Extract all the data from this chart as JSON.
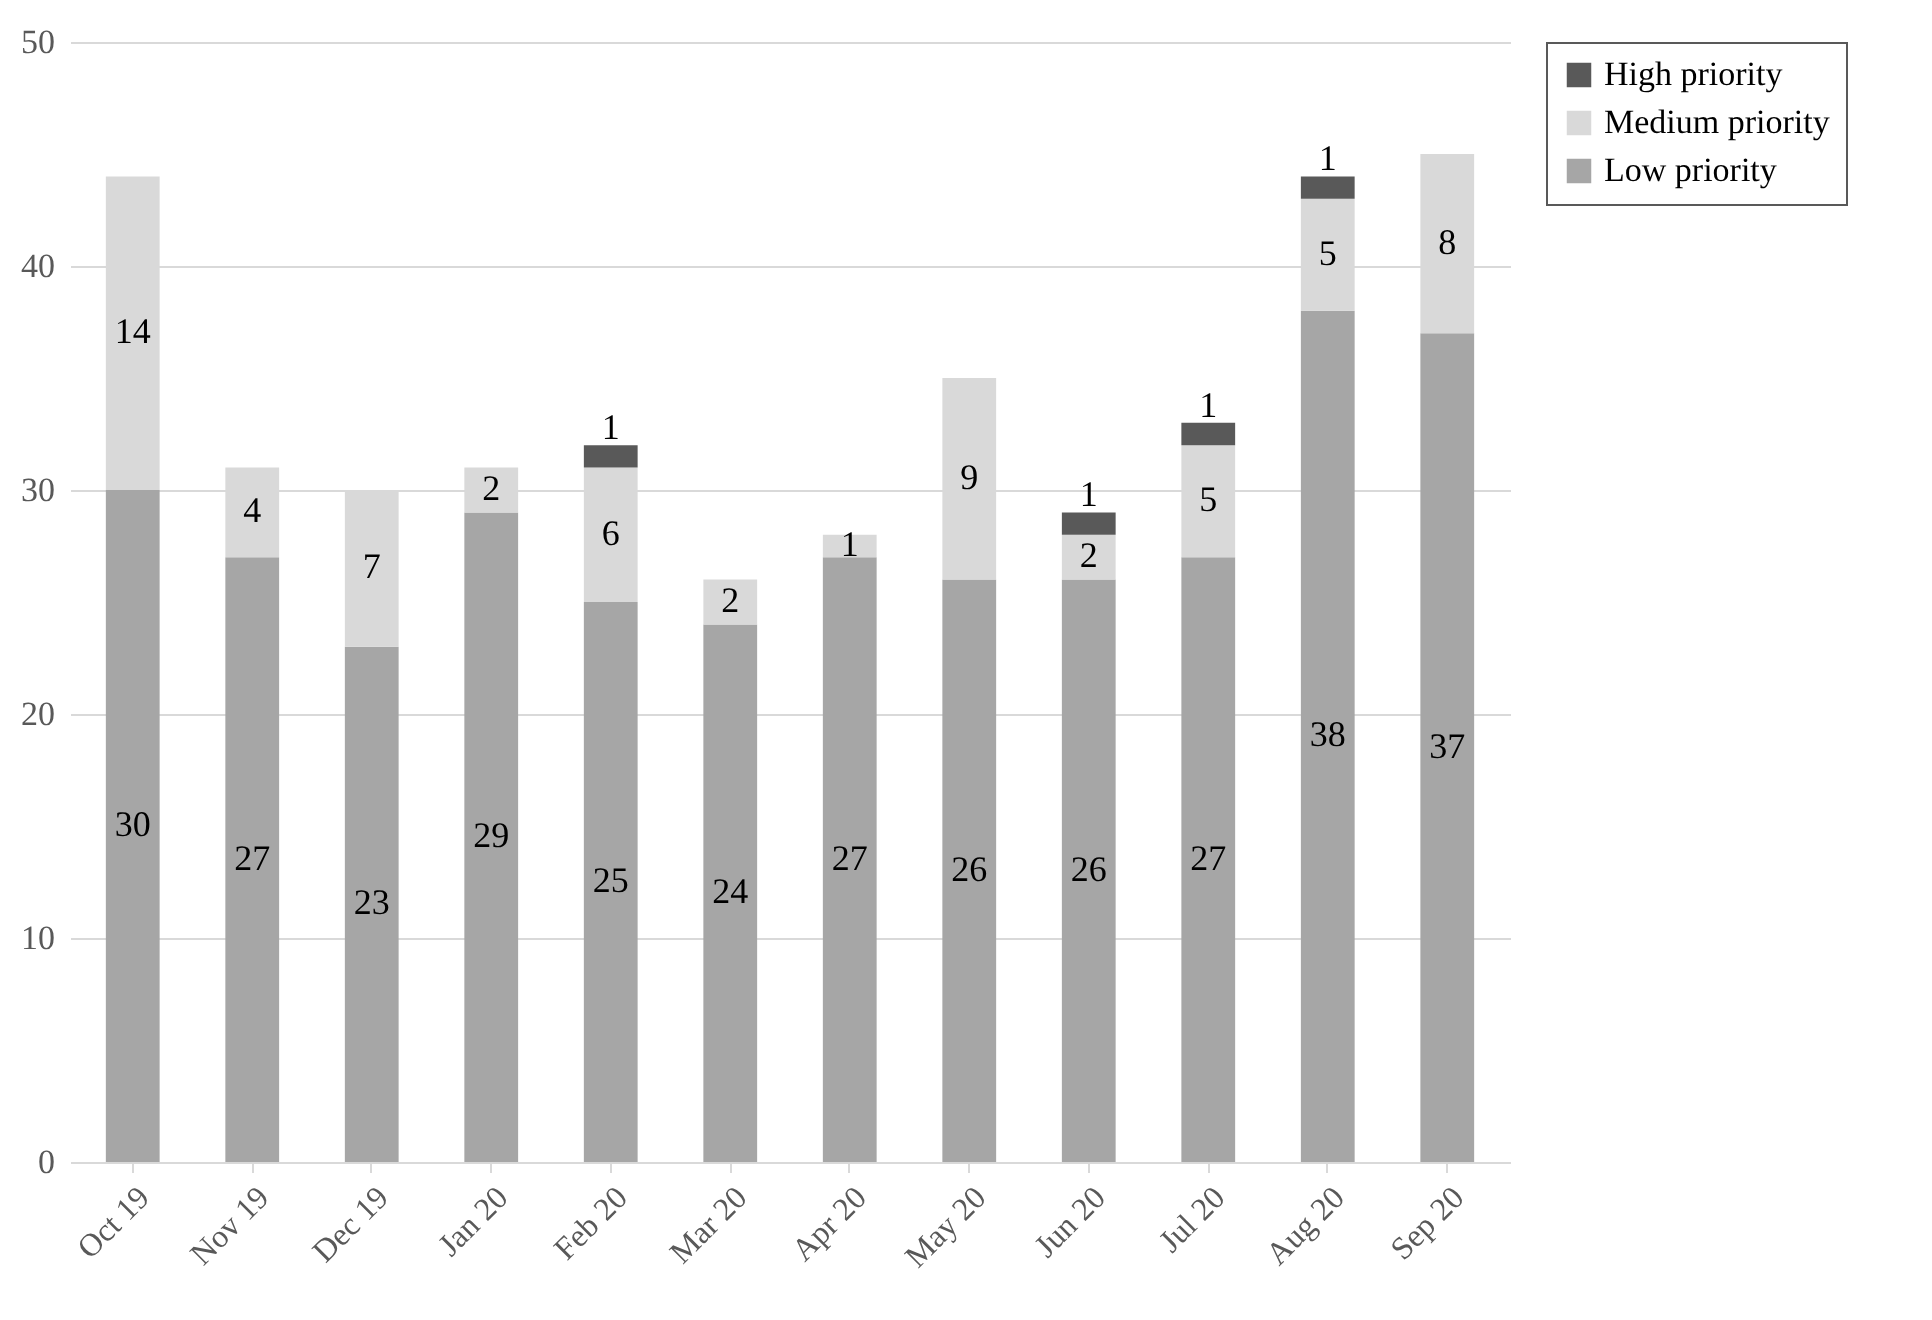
{
  "chart_data": {
    "type": "bar",
    "stacked": true,
    "categories": [
      "Oct 19",
      "Nov 19",
      "Dec 19",
      "Jan 20",
      "Feb 20",
      "Mar 20",
      "Apr 20",
      "May 20",
      "Jun 20",
      "Jul 20",
      "Aug 20",
      "Sep 20"
    ],
    "series": [
      {
        "name": "Low priority",
        "color": "#a6a6a6",
        "values": [
          30,
          27,
          23,
          29,
          25,
          24,
          27,
          26,
          26,
          27,
          38,
          37
        ]
      },
      {
        "name": "Medium priority",
        "color": "#d9d9d9",
        "values": [
          14,
          4,
          7,
          2,
          6,
          2,
          1,
          9,
          2,
          5,
          5,
          8
        ]
      },
      {
        "name": "High priority",
        "color": "#595959",
        "values": [
          null,
          null,
          null,
          null,
          1,
          null,
          null,
          null,
          1,
          1,
          1,
          null
        ]
      }
    ],
    "ylim": [
      0,
      50
    ],
    "yticks": [
      0,
      10,
      20,
      30,
      40,
      50
    ],
    "grid": "y",
    "legend": "top right",
    "data_labels": true
  }
}
